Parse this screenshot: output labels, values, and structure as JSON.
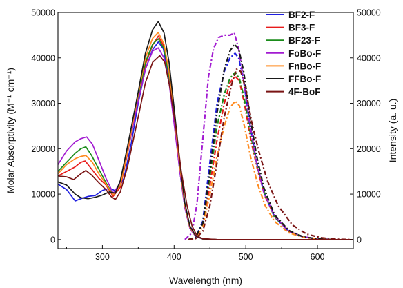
{
  "chart_data": {
    "type": "line",
    "xlabel": "Wavelength (nm)",
    "ylabel": "Molar Absorptivity (M⁻¹ cm⁻¹)",
    "ylabel_right": "Intensity (a. u.)",
    "xlim": [
      238,
      650
    ],
    "ylim": [
      -2000,
      50000
    ],
    "ylim_right": [
      -2000,
      50000
    ],
    "x_ticks": [
      300,
      400,
      500,
      600
    ],
    "y_ticks": [
      0,
      10000,
      20000,
      30000,
      40000,
      50000
    ],
    "y_ticks_right": [
      0,
      10000,
      20000,
      30000,
      40000,
      50000
    ],
    "legend_position": "top-right",
    "grid": false,
    "series": [
      {
        "name": "BF2-F",
        "color": "#1f1fe0",
        "absorption": [
          [
            238,
            12200
          ],
          [
            250,
            11000
          ],
          [
            262,
            8500
          ],
          [
            270,
            9000
          ],
          [
            280,
            9500
          ],
          [
            290,
            9700
          ],
          [
            300,
            10800
          ],
          [
            310,
            11300
          ],
          [
            320,
            10600
          ],
          [
            330,
            13500
          ],
          [
            340,
            21000
          ],
          [
            350,
            30000
          ],
          [
            360,
            37500
          ],
          [
            370,
            41800
          ],
          [
            378,
            43500
          ],
          [
            385,
            42000
          ],
          [
            392,
            36000
          ],
          [
            400,
            26000
          ],
          [
            408,
            15000
          ],
          [
            415,
            7000
          ],
          [
            422,
            2500
          ],
          [
            430,
            700
          ],
          [
            440,
            150
          ],
          [
            460,
            0
          ],
          [
            650,
            0
          ]
        ],
        "emission": [
          [
            420,
            0
          ],
          [
            430,
            500
          ],
          [
            440,
            4000
          ],
          [
            450,
            17000
          ],
          [
            460,
            30000
          ],
          [
            470,
            37000
          ],
          [
            478,
            40000
          ],
          [
            485,
            41000
          ],
          [
            490,
            40000
          ],
          [
            497,
            35000
          ],
          [
            505,
            26000
          ],
          [
            515,
            17000
          ],
          [
            525,
            10500
          ],
          [
            540,
            5000
          ],
          [
            560,
            1800
          ],
          [
            580,
            600
          ],
          [
            600,
            150
          ],
          [
            620,
            0
          ]
        ]
      },
      {
        "name": "BF3-F",
        "color": "#e81b1b",
        "absorption": [
          [
            238,
            14000
          ],
          [
            250,
            15000
          ],
          [
            262,
            16000
          ],
          [
            270,
            17000
          ],
          [
            276,
            17300
          ],
          [
            285,
            15500
          ],
          [
            295,
            13500
          ],
          [
            305,
            12000
          ],
          [
            315,
            9500
          ],
          [
            325,
            11500
          ],
          [
            335,
            19000
          ],
          [
            350,
            31000
          ],
          [
            360,
            38500
          ],
          [
            370,
            42800
          ],
          [
            378,
            44800
          ],
          [
            386,
            42500
          ],
          [
            393,
            36500
          ],
          [
            400,
            27000
          ],
          [
            408,
            16000
          ],
          [
            415,
            7500
          ],
          [
            422,
            2700
          ],
          [
            430,
            800
          ],
          [
            440,
            150
          ],
          [
            460,
            0
          ],
          [
            650,
            0
          ]
        ],
        "emission": [
          [
            420,
            0
          ],
          [
            430,
            400
          ],
          [
            440,
            3000
          ],
          [
            450,
            12000
          ],
          [
            460,
            22000
          ],
          [
            470,
            30000
          ],
          [
            478,
            34500
          ],
          [
            485,
            36000
          ],
          [
            491,
            35000
          ],
          [
            498,
            30000
          ],
          [
            507,
            22000
          ],
          [
            517,
            15000
          ],
          [
            527,
            9500
          ],
          [
            540,
            5200
          ],
          [
            560,
            1800
          ],
          [
            580,
            600
          ],
          [
            600,
            150
          ],
          [
            620,
            0
          ]
        ]
      },
      {
        "name": "BF23-F",
        "color": "#1a8c1a",
        "absorption": [
          [
            238,
            15000
          ],
          [
            250,
            17000
          ],
          [
            262,
            19000
          ],
          [
            270,
            20000
          ],
          [
            277,
            20400
          ],
          [
            285,
            18500
          ],
          [
            295,
            15500
          ],
          [
            305,
            12500
          ],
          [
            315,
            9800
          ],
          [
            325,
            12000
          ],
          [
            335,
            19500
          ],
          [
            350,
            31500
          ],
          [
            360,
            39000
          ],
          [
            370,
            43000
          ],
          [
            378,
            44200
          ],
          [
            386,
            42000
          ],
          [
            393,
            36000
          ],
          [
            400,
            26500
          ],
          [
            408,
            15500
          ],
          [
            415,
            7300
          ],
          [
            422,
            2600
          ],
          [
            430,
            750
          ],
          [
            440,
            150
          ],
          [
            460,
            0
          ],
          [
            650,
            0
          ]
        ],
        "emission": [
          [
            420,
            0
          ],
          [
            430,
            500
          ],
          [
            440,
            3500
          ],
          [
            450,
            14000
          ],
          [
            460,
            25000
          ],
          [
            470,
            32000
          ],
          [
            478,
            35500
          ],
          [
            485,
            36800
          ],
          [
            491,
            35500
          ],
          [
            498,
            31000
          ],
          [
            507,
            23000
          ],
          [
            517,
            15500
          ],
          [
            527,
            9800
          ],
          [
            540,
            5000
          ],
          [
            560,
            1800
          ],
          [
            580,
            600
          ],
          [
            600,
            150
          ],
          [
            620,
            0
          ]
        ]
      },
      {
        "name": "FoBo-F",
        "color": "#a21bd1",
        "absorption": [
          [
            238,
            16500
          ],
          [
            250,
            19500
          ],
          [
            262,
            21500
          ],
          [
            270,
            22200
          ],
          [
            278,
            22600
          ],
          [
            286,
            21000
          ],
          [
            295,
            17500
          ],
          [
            305,
            13500
          ],
          [
            315,
            10200
          ],
          [
            325,
            12500
          ],
          [
            335,
            19500
          ],
          [
            350,
            30500
          ],
          [
            360,
            37500
          ],
          [
            370,
            41500
          ],
          [
            378,
            42200
          ],
          [
            386,
            40000
          ],
          [
            393,
            34500
          ],
          [
            400,
            25500
          ],
          [
            408,
            15000
          ],
          [
            415,
            7000
          ],
          [
            422,
            2500
          ],
          [
            430,
            700
          ],
          [
            440,
            150
          ],
          [
            460,
            0
          ],
          [
            650,
            0
          ]
        ],
        "emission": [
          [
            415,
            0
          ],
          [
            425,
            1500
          ],
          [
            432,
            8000
          ],
          [
            440,
            22000
          ],
          [
            448,
            36000
          ],
          [
            455,
            42000
          ],
          [
            462,
            44500
          ],
          [
            470,
            45000
          ],
          [
            478,
            45000
          ],
          [
            484,
            45500
          ],
          [
            490,
            42000
          ],
          [
            497,
            35000
          ],
          [
            505,
            26000
          ],
          [
            515,
            17000
          ],
          [
            525,
            10500
          ],
          [
            540,
            5200
          ],
          [
            560,
            1800
          ],
          [
            580,
            600
          ],
          [
            600,
            150
          ],
          [
            620,
            0
          ]
        ]
      },
      {
        "name": "FnBo-F",
        "color": "#ff8a1f",
        "absorption": [
          [
            238,
            14500
          ],
          [
            250,
            16500
          ],
          [
            262,
            17800
          ],
          [
            270,
            18300
          ],
          [
            277,
            18500
          ],
          [
            286,
            17000
          ],
          [
            295,
            14500
          ],
          [
            305,
            12200
          ],
          [
            315,
            9800
          ],
          [
            325,
            12000
          ],
          [
            335,
            19500
          ],
          [
            350,
            32000
          ],
          [
            360,
            40000
          ],
          [
            370,
            44300
          ],
          [
            378,
            45600
          ],
          [
            386,
            43000
          ],
          [
            393,
            37000
          ],
          [
            400,
            27500
          ],
          [
            408,
            16000
          ],
          [
            415,
            7500
          ],
          [
            422,
            2700
          ],
          [
            430,
            800
          ],
          [
            440,
            150
          ],
          [
            460,
            0
          ],
          [
            650,
            0
          ]
        ],
        "emission": [
          [
            420,
            0
          ],
          [
            430,
            400
          ],
          [
            440,
            2800
          ],
          [
            450,
            10000
          ],
          [
            460,
            18500
          ],
          [
            470,
            25000
          ],
          [
            478,
            29000
          ],
          [
            485,
            30500
          ],
          [
            491,
            29500
          ],
          [
            498,
            25000
          ],
          [
            507,
            18000
          ],
          [
            517,
            12000
          ],
          [
            527,
            7500
          ],
          [
            540,
            4000
          ],
          [
            560,
            1500
          ],
          [
            580,
            500
          ],
          [
            600,
            100
          ],
          [
            620,
            0
          ]
        ]
      },
      {
        "name": "FFBo-F",
        "color": "#1a1a1a",
        "absorption": [
          [
            238,
            12700
          ],
          [
            250,
            12000
          ],
          [
            262,
            10000
          ],
          [
            270,
            9200
          ],
          [
            280,
            9000
          ],
          [
            290,
            9300
          ],
          [
            300,
            9800
          ],
          [
            310,
            10500
          ],
          [
            318,
            10200
          ],
          [
            325,
            13000
          ],
          [
            335,
            20500
          ],
          [
            350,
            32500
          ],
          [
            360,
            41000
          ],
          [
            370,
            46200
          ],
          [
            378,
            48000
          ],
          [
            386,
            45500
          ],
          [
            393,
            39000
          ],
          [
            400,
            29000
          ],
          [
            408,
            17000
          ],
          [
            415,
            8000
          ],
          [
            422,
            3000
          ],
          [
            430,
            800
          ],
          [
            440,
            150
          ],
          [
            460,
            0
          ],
          [
            650,
            0
          ]
        ],
        "emission": [
          [
            420,
            0
          ],
          [
            430,
            500
          ],
          [
            440,
            3500
          ],
          [
            450,
            15000
          ],
          [
            460,
            28000
          ],
          [
            470,
            37500
          ],
          [
            478,
            41500
          ],
          [
            484,
            43000
          ],
          [
            490,
            42000
          ],
          [
            497,
            37000
          ],
          [
            505,
            28000
          ],
          [
            515,
            18500
          ],
          [
            525,
            11500
          ],
          [
            540,
            5500
          ],
          [
            560,
            2000
          ],
          [
            580,
            600
          ],
          [
            600,
            150
          ],
          [
            620,
            0
          ]
        ]
      },
      {
        "name": "4F-BoF",
        "color": "#7a1414",
        "absorption": [
          [
            238,
            14000
          ],
          [
            250,
            13800
          ],
          [
            260,
            13200
          ],
          [
            270,
            14500
          ],
          [
            277,
            15200
          ],
          [
            285,
            14200
          ],
          [
            295,
            12500
          ],
          [
            305,
            11000
          ],
          [
            312,
            9500
          ],
          [
            318,
            8800
          ],
          [
            325,
            10500
          ],
          [
            335,
            16000
          ],
          [
            350,
            27000
          ],
          [
            360,
            34500
          ],
          [
            370,
            39000
          ],
          [
            380,
            40500
          ],
          [
            387,
            39000
          ],
          [
            394,
            33500
          ],
          [
            402,
            25000
          ],
          [
            410,
            15000
          ],
          [
            418,
            7500
          ],
          [
            425,
            3000
          ],
          [
            432,
            800
          ],
          [
            440,
            200
          ],
          [
            460,
            0
          ],
          [
            650,
            0
          ]
        ],
        "emission": [
          [
            420,
            0
          ],
          [
            430,
            200
          ],
          [
            440,
            1800
          ],
          [
            450,
            7500
          ],
          [
            460,
            17000
          ],
          [
            470,
            27000
          ],
          [
            480,
            34000
          ],
          [
            487,
            37500
          ],
          [
            493,
            37000
          ],
          [
            500,
            33000
          ],
          [
            508,
            26000
          ],
          [
            518,
            19500
          ],
          [
            530,
            13000
          ],
          [
            545,
            7500
          ],
          [
            565,
            3200
          ],
          [
            585,
            1200
          ],
          [
            605,
            400
          ],
          [
            625,
            100
          ],
          [
            645,
            0
          ]
        ]
      }
    ]
  }
}
